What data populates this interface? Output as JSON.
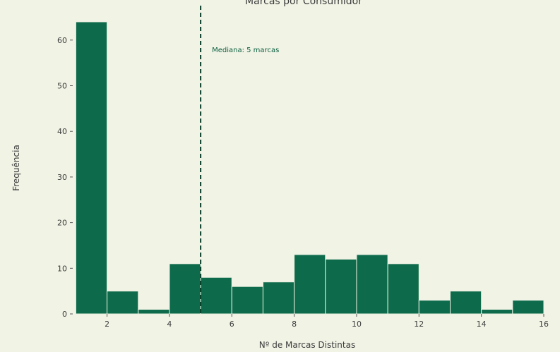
{
  "chart_data": {
    "type": "bar",
    "title": "Marcas por Consumidor",
    "xlabel": "Nº de Marcas Distintas",
    "ylabel": "Frequência",
    "bins": [
      {
        "x0": 1.0,
        "x1": 2.0,
        "count": 64
      },
      {
        "x0": 2.0,
        "x1": 3.0,
        "count": 5
      },
      {
        "x0": 3.0,
        "x1": 4.0,
        "count": 1
      },
      {
        "x0": 4.0,
        "x1": 5.0,
        "count": 11
      },
      {
        "x0": 5.0,
        "x1": 6.0,
        "count": 8
      },
      {
        "x0": 6.0,
        "x1": 7.0,
        "count": 6
      },
      {
        "x0": 7.0,
        "x1": 8.0,
        "count": 7
      },
      {
        "x0": 8.0,
        "x1": 9.0,
        "count": 13
      },
      {
        "x0": 9.0,
        "x1": 10.0,
        "count": 12
      },
      {
        "x0": 10.0,
        "x1": 11.0,
        "count": 13
      },
      {
        "x0": 11.0,
        "x1": 12.0,
        "count": 11
      },
      {
        "x0": 12.0,
        "x1": 13.0,
        "count": 3
      },
      {
        "x0": 13.0,
        "x1": 14.0,
        "count": 5
      },
      {
        "x0": 14.0,
        "x1": 15.0,
        "count": 1
      },
      {
        "x0": 15.0,
        "x1": 16.0,
        "count": 3
      }
    ],
    "xlim": [
      0.9,
      16.0
    ],
    "ylim": [
      0,
      66
    ],
    "xticks": [
      2,
      4,
      6,
      8,
      10,
      12,
      14,
      16
    ],
    "yticks": [
      0,
      10,
      20,
      30,
      40,
      50,
      60
    ],
    "median": {
      "value": 5,
      "label": "Mediana: 5 marcas"
    },
    "grid": false,
    "colors": {
      "bar": "#0d6b4b",
      "bar_edge": "#e9efe0",
      "median_line": "#0b3f2c",
      "background": "#f1f3e5"
    }
  }
}
